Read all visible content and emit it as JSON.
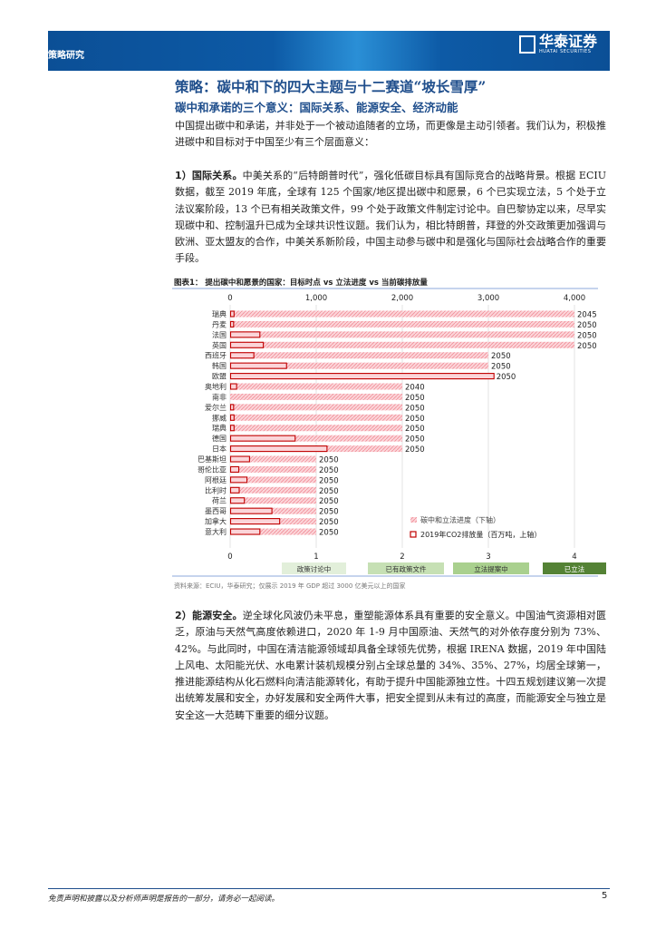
{
  "header": {
    "section": "策略研究",
    "logo_cn": "华泰证券",
    "logo_en": "HUATAI SECURITIES"
  },
  "title": "策略：碳中和下的四大主题与十二赛道“坡长雪厚”",
  "subtitle": "碳中和承诺的三个意义：国际关系、能源安全、经济动能",
  "intro": "中国提出碳中和承诺，并非处于一个被动追随者的立场，而更像是主动引领者。我们认为，积极推进碳中和目标对于中国至少有三个层面意义：",
  "para1": {
    "lead": "1）国际关系。",
    "text": "中美关系的“后特朗普时代”，强化低碳目标具有国际竞合的战略背景。根据 ECIU 数据，截至 2019 年底，全球有 125 个国家/地区提出碳中和愿景，6 个已实现立法，5 个处于立法议案阶段，13 个已有相关政策文件，99 个处于政策文件制定讨论中。自巴黎协定以来，尽早实现碳中和、控制温升已成为全球共识性议题。我们认为，相比特朗普，拜登的外交政策更加强调与欧洲、亚太盟友的合作，中美关系新阶段，中国主动参与碳中和是强化与国际社会战略合作的重要手段。"
  },
  "para2": {
    "lead": "2）能源安全。",
    "text": "逆全球化风波仍未平息，重塑能源体系具有重要的安全意义。中国油气资源相对匮乏，原油与天然气高度依赖进口，2020 年 1-9 月中国原油、天然气的对外依存度分别为 73%、42%。与此同时，中国在清洁能源领域却具备全球领先优势，根据 IRENA 数据，2019 年中国陆上风电、太阳能光伏、水电累计装机规模分别占全球总量的 34%、35%、27%，均居全球第一，推进能源结构从化石燃料向清洁能源转化，有助于提升中国能源独立性。十四五规划建议第一次提出统筹发展和安全，办好发展和安全两件大事，把安全提到从未有过的高度，而能源安全与独立是安全这一大范畴下重要的细分议题。"
  },
  "chart_data": {
    "type": "bar",
    "orientation": "horizontal",
    "title": "图表1：  提出碳中和愿景的国家：目标时点 vs 立法进度 vs 当前碳排放量",
    "categories": [
      "瑞典",
      "丹麦",
      "法国",
      "英国",
      "西班牙",
      "韩国",
      "欧盟",
      "奥地利",
      "南非",
      "爱尔兰",
      "挪威",
      "瑞典",
      "德国",
      "日本",
      "巴基斯坦",
      "哥伦比亚",
      "阿根廷",
      "比利时",
      "荷兰",
      "墨西哥",
      "加拿大",
      "意大利"
    ],
    "series": [
      {
        "name": "碳中和立法进度（下轴）",
        "axis": "bottom",
        "color": "#f4a6ae",
        "values": [
          4,
          4,
          4,
          4,
          3,
          3,
          3,
          2,
          2,
          2,
          2,
          2,
          2,
          2,
          1,
          1,
          1,
          1,
          1,
          1,
          1,
          1
        ]
      },
      {
        "name": "2019年CO2排放量（百万吨，上轴）",
        "axis": "top",
        "color": "#c00000",
        "values": [
          40,
          35,
          340,
          380,
          270,
          650,
          3060,
          70,
          0,
          35,
          40,
          40,
          750,
          1120,
          220,
          95,
          190,
          100,
          160,
          480,
          570,
          340
        ]
      }
    ],
    "data_labels": [
      "2045",
      "2050",
      "2050",
      "2050",
      "2050",
      "2050",
      "2050",
      "2040",
      "2050",
      "2050",
      "2050",
      "2050",
      "2050",
      "2050",
      "2050",
      "2050",
      "2050",
      "2050",
      "2050",
      "2050",
      "2050",
      "2050"
    ],
    "top_axis": {
      "ticks": [
        "0",
        "1,000",
        "2,000",
        "3,000",
        "4,000"
      ],
      "range": [
        0,
        4000
      ]
    },
    "bottom_axis": {
      "ticks": [
        "0",
        "1",
        "2",
        "3",
        "4"
      ],
      "range": [
        0,
        4
      ]
    },
    "stages": [
      {
        "label": "政策讨论中",
        "color": "#e2efda"
      },
      {
        "label": "已有政策文件",
        "color": "#c6e0b4"
      },
      {
        "label": "立法提案中",
        "color": "#a9d08e"
      },
      {
        "label": "已立法",
        "color": "#548235"
      }
    ],
    "legend_position": "bottom-right",
    "grid": true,
    "source": "资料来源：ECIU，华泰研究；仅展示 2019 年 GDP 超过 3000 亿美元以上的国家"
  },
  "footer": {
    "disclaimer": "免责声明和披露以及分析师声明是报告的一部分，请务必一起阅读。",
    "page": "5"
  }
}
